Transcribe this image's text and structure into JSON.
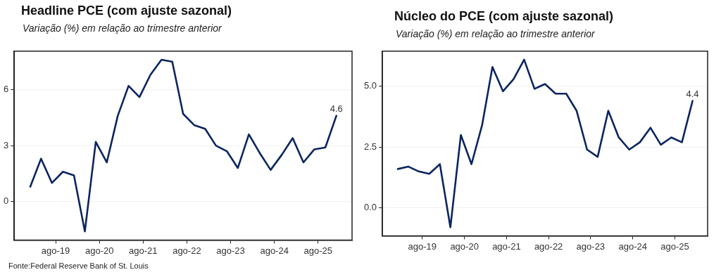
{
  "chart_data": [
    {
      "type": "line",
      "title": "Headline PCE (com ajuste sazonal)",
      "subtitle": "Variação (%) em relação ao trimestre anterior",
      "x": [
        "2019-01-01",
        "2019-04-01",
        "2019-07-01",
        "2019-10-01",
        "2020-01-01",
        "2020-04-01",
        "2020-07-01",
        "2020-10-01",
        "2021-01-01",
        "2021-04-01",
        "2021-07-01",
        "2021-10-01",
        "2022-01-01",
        "2022-04-01",
        "2022-07-01",
        "2022-10-01",
        "2023-01-01",
        "2023-04-01",
        "2023-07-01",
        "2023-10-01",
        "2024-01-01",
        "2024-04-01",
        "2024-07-01",
        "2024-10-01",
        "2025-01-01",
        "2025-04-01",
        "2025-07-01",
        "2025-10-01",
        "2026-01-01"
      ],
      "series": [
        {
          "color": "#0b2560",
          "values": [
            0.8,
            2.3,
            1.0,
            1.6,
            1.4,
            -1.6,
            3.2,
            2.1,
            4.6,
            6.2,
            5.6,
            6.8,
            7.6,
            7.5,
            4.7,
            4.1,
            3.9,
            3.0,
            2.7,
            1.8,
            3.6,
            2.6,
            1.7,
            2.5,
            3.4,
            2.1,
            2.8,
            2.9,
            4.6
          ]
        }
      ],
      "xlim": [
        "2018-08-20",
        "2026-05-12"
      ],
      "xticks": [
        {
          "value": "2019-08-01",
          "label": "ago-19"
        },
        {
          "value": "2020-08-01",
          "label": "ago-20"
        },
        {
          "value": "2021-08-01",
          "label": "ago-21"
        },
        {
          "value": "2022-08-01",
          "label": "ago-22"
        },
        {
          "value": "2023-08-01",
          "label": "ago-23"
        },
        {
          "value": "2024-08-01",
          "label": "ago-24"
        },
        {
          "value": "2025-08-01",
          "label": "ago-25"
        }
      ],
      "ylim": [
        -2.06,
        8.06
      ],
      "yticks": [
        0,
        3,
        6
      ],
      "grid": "y",
      "legend": false,
      "annotations": [
        {
          "text": "4.6",
          "x": "2026-01-01",
          "y": 4.6
        },
        "Fonte:Federal Reserve Bank of St. Louis"
      ]
    },
    {
      "type": "line",
      "title": "Núcleo do PCE (com ajuste sazonal)",
      "subtitle": "Variação (%) em relação ao trimestre anterior",
      "x": [
        "2019-01-01",
        "2019-04-01",
        "2019-07-01",
        "2019-10-01",
        "2020-01-01",
        "2020-04-01",
        "2020-07-01",
        "2020-10-01",
        "2021-01-01",
        "2021-04-01",
        "2021-07-01",
        "2021-10-01",
        "2022-01-01",
        "2022-04-01",
        "2022-07-01",
        "2022-10-01",
        "2023-01-01",
        "2023-04-01",
        "2023-07-01",
        "2023-10-01",
        "2024-01-01",
        "2024-04-01",
        "2024-07-01",
        "2024-10-01",
        "2025-01-01",
        "2025-04-01",
        "2025-07-01",
        "2025-10-01",
        "2026-01-01"
      ],
      "series": [
        {
          "color": "#0b2560",
          "values": [
            1.6,
            1.7,
            1.5,
            1.4,
            1.8,
            -0.8,
            3.0,
            1.8,
            3.4,
            5.8,
            4.8,
            5.3,
            6.1,
            4.9,
            5.1,
            4.7,
            4.7,
            4.0,
            2.4,
            2.1,
            4.0,
            2.9,
            2.4,
            2.7,
            3.3,
            2.6,
            2.9,
            2.7,
            4.4
          ]
        }
      ],
      "xlim": [
        "2018-08-20",
        "2026-05-12"
      ],
      "xticks": [
        {
          "value": "2019-08-01",
          "label": "ago-19"
        },
        {
          "value": "2020-08-01",
          "label": "ago-20"
        },
        {
          "value": "2021-08-01",
          "label": "ago-21"
        },
        {
          "value": "2022-08-01",
          "label": "ago-22"
        },
        {
          "value": "2023-08-01",
          "label": "ago-23"
        },
        {
          "value": "2024-08-01",
          "label": "ago-24"
        },
        {
          "value": "2025-08-01",
          "label": "ago-25"
        }
      ],
      "ylim": [
        -1.15,
        6.45
      ],
      "yticks": [
        {
          "value": 0,
          "label": "0.0"
        },
        {
          "value": 2.5,
          "label": "2.5"
        },
        {
          "value": 5,
          "label": "5.0"
        }
      ],
      "grid": "y",
      "legend": false,
      "annotations": [
        {
          "text": "4.4",
          "x": "2026-01-01",
          "y": 4.4
        }
      ]
    }
  ]
}
